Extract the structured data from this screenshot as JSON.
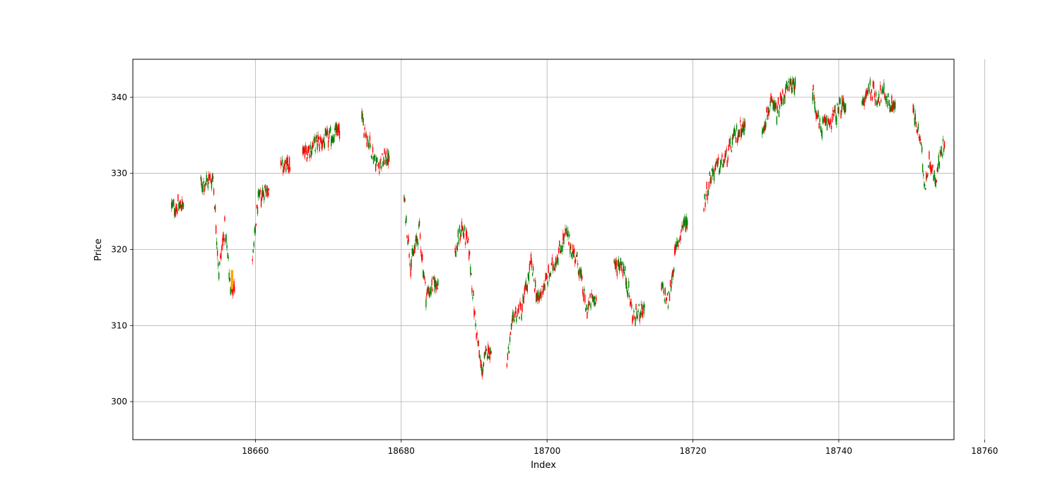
{
  "chart_data": {
    "type": "candlestick",
    "title": "",
    "xlabel": "Index",
    "ylabel": "Price",
    "xlim": [
      18643.2,
      18755.8
    ],
    "ylim": [
      295,
      345
    ],
    "xticks": [
      18660,
      18680,
      18700,
      18720,
      18740,
      18760
    ],
    "yticks": [
      300,
      310,
      320,
      330,
      340
    ],
    "grid": true,
    "legend": "none",
    "colors": {
      "up": "#008000",
      "down": "#ff0000",
      "highlight": "#ffa500",
      "grid": "#b0b0b0"
    },
    "price_path": [
      [
        18648.5,
        325.5
      ],
      [
        18649.6,
        325.8
      ],
      [
        18652.5,
        328.5
      ],
      [
        18653.5,
        329.0
      ],
      [
        18654.2,
        329.5
      ],
      [
        18655.0,
        317.0
      ],
      [
        18655.8,
        323.0
      ],
      [
        18656.6,
        315.0
      ],
      [
        18659.6,
        318.0
      ],
      [
        18660.3,
        326.0
      ],
      [
        18661.3,
        328.0
      ],
      [
        18663.5,
        330.5
      ],
      [
        18664.2,
        331.0
      ],
      [
        18666.5,
        332.5
      ],
      [
        18668.5,
        334.0
      ],
      [
        18670.0,
        334.5
      ],
      [
        18671.0,
        335.5
      ],
      [
        18674.6,
        337.0
      ],
      [
        18675.6,
        334.0
      ],
      [
        18676.8,
        331.0
      ],
      [
        18677.8,
        332.0
      ],
      [
        18680.4,
        326.5
      ],
      [
        18681.3,
        318.0
      ],
      [
        18682.5,
        322.5
      ],
      [
        18683.4,
        314.0
      ],
      [
        18684.5,
        315.5
      ],
      [
        18687.4,
        319.5
      ],
      [
        18688.3,
        323.0
      ],
      [
        18689.3,
        320.0
      ],
      [
        18690.2,
        310.0
      ],
      [
        18691.0,
        304.0
      ],
      [
        18691.8,
        306.5
      ],
      [
        18694.5,
        305.0
      ],
      [
        18695.5,
        311.5
      ],
      [
        18696.5,
        312.0
      ],
      [
        18697.8,
        318.0
      ],
      [
        18698.8,
        313.0
      ],
      [
        18699.4,
        315.0
      ],
      [
        18700.5,
        317.0
      ],
      [
        18701.3,
        319.0
      ],
      [
        18702.6,
        322.0
      ],
      [
        18704.3,
        318.0
      ],
      [
        18705.4,
        312.0
      ],
      [
        18706.2,
        313.5
      ],
      [
        18709.2,
        317.5
      ],
      [
        18710.2,
        318.5
      ],
      [
        18711.0,
        315.5
      ],
      [
        18711.8,
        311.0
      ],
      [
        18712.8,
        312.0
      ],
      [
        18715.7,
        315.0
      ],
      [
        18716.6,
        313.0
      ],
      [
        18717.6,
        319.5
      ],
      [
        18718.7,
        323.5
      ],
      [
        18721.5,
        326.0
      ],
      [
        18722.5,
        330.0
      ],
      [
        18723.6,
        331.0
      ],
      [
        18724.6,
        332.0
      ],
      [
        18725.6,
        334.5
      ],
      [
        18726.6,
        336.0
      ],
      [
        18729.5,
        336.0
      ],
      [
        18730.6,
        339.0
      ],
      [
        18731.5,
        338.0
      ],
      [
        18732.5,
        340.5
      ],
      [
        18733.5,
        341.5
      ],
      [
        18736.4,
        341.0
      ],
      [
        18737.4,
        336.0
      ],
      [
        18738.4,
        336.5
      ],
      [
        18739.4,
        337.5
      ],
      [
        18740.4,
        339.0
      ],
      [
        18743.2,
        338.5
      ],
      [
        18744.2,
        341.5
      ],
      [
        18745.2,
        340.0
      ],
      [
        18746.3,
        340.5
      ],
      [
        18747.2,
        339.0
      ],
      [
        18750.2,
        338.0
      ],
      [
        18751.2,
        334.0
      ],
      [
        18751.8,
        328.5
      ],
      [
        18752.5,
        332.0
      ],
      [
        18753.2,
        329.0
      ],
      [
        18754.0,
        332.5
      ],
      [
        18754.6,
        334.5
      ]
    ]
  }
}
